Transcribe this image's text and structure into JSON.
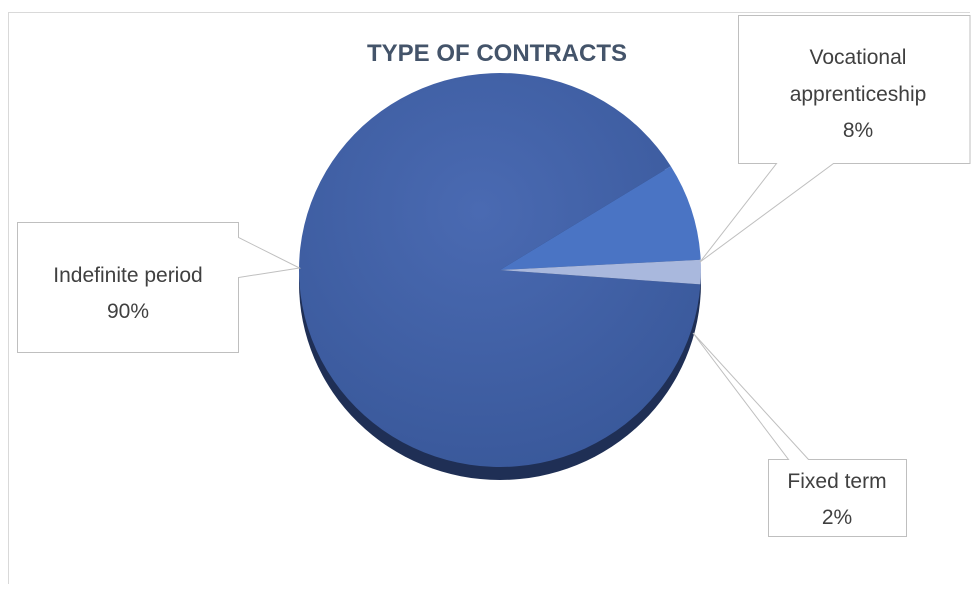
{
  "chart_data": {
    "type": "pie",
    "title": "TYPE OF CONTRACTS",
    "slices": [
      {
        "label": "Indefinite period",
        "value": 90,
        "value_label": "90%",
        "color": "#3f5fa3"
      },
      {
        "label": "Vocational apprenticeship",
        "value": 8,
        "value_label": "8%",
        "color": "#4a74c4"
      },
      {
        "label": "Fixed term",
        "value": 2,
        "value_label": "2%",
        "color": "#a9b8dd"
      }
    ],
    "legend": "none",
    "data_labels": "callouts"
  },
  "colors": {
    "title": "#44546a",
    "callout_text": "#404040",
    "callout_border": "#bfbfbf",
    "pie_shadow": "#1f2f55"
  }
}
